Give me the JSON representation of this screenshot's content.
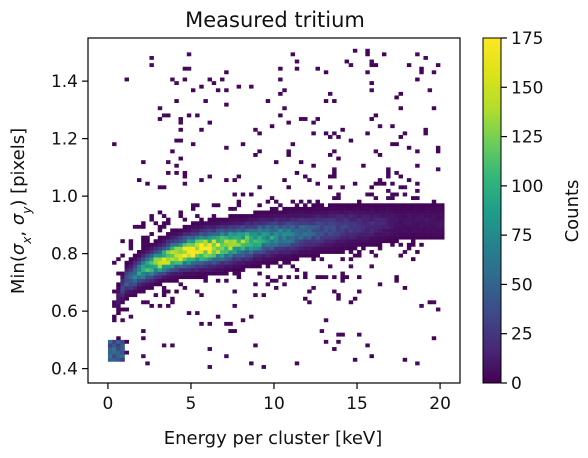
{
  "chart_data": {
    "type": "heatmap",
    "title": "Measured tritium",
    "xlabel": "Energy per cluster [keV]",
    "ylabel": "Min(σ_x, σ_y) [pixels]",
    "xlim": [
      -1.2,
      21.2
    ],
    "ylim": [
      0.35,
      1.55
    ],
    "x_ticks": [
      0,
      5,
      10,
      15,
      20
    ],
    "y_ticks": [
      0.4,
      0.6,
      0.8,
      1.0,
      1.2,
      1.4
    ],
    "x_tick_labels": [
      "0",
      "5",
      "10",
      "15",
      "20"
    ],
    "y_tick_labels": [
      "0.4",
      "0.6",
      "0.8",
      "1.0",
      "1.2",
      "1.4"
    ],
    "bin_width_x": 0.25,
    "bin_width_y": 0.0125,
    "colormap": "viridis",
    "colorbar": {
      "label": "Counts",
      "range": [
        0,
        175
      ],
      "ticks": [
        0,
        25,
        50,
        75,
        100,
        125,
        150,
        175
      ],
      "tick_labels": [
        "0",
        "25",
        "50",
        "75",
        "100",
        "125",
        "150",
        "175"
      ]
    },
    "distribution": {
      "main_band": {
        "description": "dense curved ridge",
        "ridge_x": [
          0.6,
          1.0,
          2.0,
          3.0,
          4.0,
          5.0,
          6.0,
          8.0,
          10.0,
          12.0,
          14.0,
          16.0,
          17.5
        ],
        "ridge_y": [
          0.64,
          0.7,
          0.74,
          0.77,
          0.795,
          0.81,
          0.82,
          0.84,
          0.86,
          0.875,
          0.89,
          0.9,
          0.91
        ],
        "peak_counts": [
          10,
          40,
          90,
          130,
          155,
          170,
          160,
          120,
          80,
          50,
          30,
          18,
          8
        ]
      },
      "low_cluster": {
        "x_range": [
          0.0,
          1.0
        ],
        "y_range": [
          0.42,
          0.5
        ],
        "peak_count": 60
      },
      "sparse_range": {
        "x": [
          0.5,
          20.0
        ],
        "y": [
          0.4,
          1.5
        ]
      }
    }
  }
}
